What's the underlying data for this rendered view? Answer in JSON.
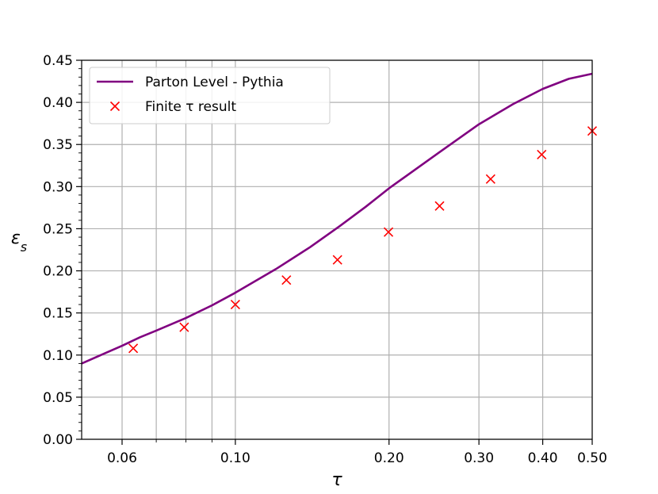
{
  "chart_data": {
    "type": "line",
    "xscale": "log",
    "xlim": [
      0.05,
      0.5
    ],
    "ylim": [
      0.0,
      0.45
    ],
    "grid": true,
    "xlabel": "τ",
    "ylabel": "ε",
    "ylabel_subscript": "s",
    "x_ticks": [
      0.06,
      0.1,
      0.2,
      0.3,
      0.4,
      0.5
    ],
    "x_tick_labels": [
      "0.06",
      "0.10",
      "0.20",
      "0.30",
      "0.40",
      "0.50"
    ],
    "x_minor_gridlines": [
      0.07,
      0.08,
      0.09
    ],
    "y_ticks": [
      0.0,
      0.05,
      0.1,
      0.15,
      0.2,
      0.25,
      0.3,
      0.35,
      0.4,
      0.45
    ],
    "y_tick_labels": [
      "0.00",
      "0.05",
      "0.10",
      "0.15",
      "0.20",
      "0.25",
      "0.30",
      "0.35",
      "0.40",
      "0.45"
    ],
    "legend_position": "top-left",
    "series": [
      {
        "name": "Parton Level - Pythia",
        "kind": "line",
        "color": "#800080",
        "x": [
          0.05,
          0.055,
          0.06,
          0.065,
          0.07,
          0.08,
          0.09,
          0.1,
          0.12,
          0.14,
          0.16,
          0.18,
          0.2,
          0.25,
          0.3,
          0.35,
          0.4,
          0.45,
          0.5
        ],
        "y": [
          0.09,
          0.101,
          0.111,
          0.121,
          0.129,
          0.144,
          0.159,
          0.174,
          0.202,
          0.228,
          0.253,
          0.276,
          0.298,
          0.34,
          0.374,
          0.398,
          0.416,
          0.428,
          0.434
        ]
      },
      {
        "name": "Finite τ result",
        "kind": "scatter",
        "marker": "x",
        "color": "#ff0000",
        "x": [
          0.0631,
          0.0794,
          0.1,
          0.1259,
          0.1585,
          0.1995,
          0.2512,
          0.3162,
          0.3981,
          0.5
        ],
        "y": [
          0.108,
          0.133,
          0.16,
          0.189,
          0.213,
          0.246,
          0.277,
          0.309,
          0.338,
          0.366
        ]
      }
    ]
  }
}
